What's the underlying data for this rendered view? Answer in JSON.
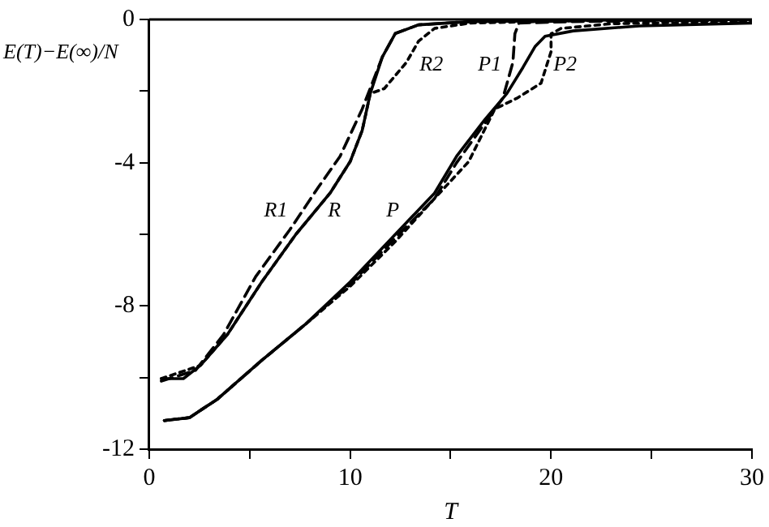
{
  "chart_data": {
    "type": "line",
    "xlabel": "T",
    "ylabel": "E(T)−E(∞)/N",
    "xlim": [
      0,
      30
    ],
    "ylim": [
      -12,
      0
    ],
    "xticks": [
      0,
      {
        "value": 5,
        "label": null
      },
      10,
      {
        "value": 15,
        "label": null
      },
      20,
      {
        "value": 25,
        "label": null
      },
      30
    ],
    "yticks": [
      -12,
      {
        "value": -10,
        "label": null
      },
      -8,
      {
        "value": -6,
        "label": null
      },
      -4,
      {
        "value": -2,
        "label": null
      },
      0
    ],
    "grid": false,
    "legend": false,
    "marker": "none",
    "series": [
      {
        "name": "R",
        "color": "#000000",
        "line_style": "solid",
        "x": [
          0.6,
          1.7,
          2.55,
          3.9,
          5.6,
          7.3,
          9.0,
          10.0,
          10.6,
          11.0,
          11.6,
          12.25,
          13.4,
          16,
          22,
          30
        ],
        "values": [
          -10.03,
          -10.03,
          -9.66,
          -8.79,
          -7.33,
          -6.0,
          -4.85,
          -3.97,
          -3.1,
          -2.07,
          -1.05,
          -0.39,
          -0.15,
          -0.06,
          -0.02,
          0
        ]
      },
      {
        "name": "R1",
        "color": "#000000",
        "line_style": "dashed",
        "x": [
          0.6,
          2.3,
          3.7,
          5.3,
          7.0,
          8.4,
          9.5,
          10.6,
          11.1,
          11.6,
          12.25,
          13.4,
          16,
          22,
          30
        ],
        "values": [
          -10.1,
          -9.8,
          -8.8,
          -7.18,
          -5.87,
          -4.7,
          -3.82,
          -2.5,
          -1.78,
          -1.05,
          -0.39,
          -0.15,
          -0.06,
          -0.02,
          0
        ]
      },
      {
        "name": "R2",
        "color": "#000000",
        "line_style": "dotted",
        "x": [
          0.6,
          2.55,
          3.9,
          5.6,
          7.3,
          9.0,
          10.0,
          10.6,
          11.0,
          11.7,
          12.8,
          13.4,
          14.2,
          16,
          22,
          30
        ],
        "values": [
          -10.03,
          -9.66,
          -8.79,
          -7.33,
          -6.0,
          -4.85,
          -3.97,
          -3.1,
          -2.07,
          -1.93,
          -1.2,
          -0.61,
          -0.25,
          -0.1,
          -0.03,
          0
        ]
      },
      {
        "name": "P",
        "color": "#000000",
        "line_style": "solid",
        "x": [
          0.75,
          2.0,
          3.4,
          5.6,
          7.8,
          10,
          12.25,
          14.2,
          15.3,
          16.7,
          17.8,
          18.6,
          19.2,
          19.7,
          21.1,
          24.4,
          30
        ],
        "values": [
          -11.2,
          -11.12,
          -10.6,
          -9.52,
          -8.5,
          -7.33,
          -6.0,
          -4.85,
          -3.82,
          -2.8,
          -2.07,
          -1.34,
          -0.76,
          -0.47,
          -0.32,
          -0.18,
          -0.1
        ]
      },
      {
        "name": "P1",
        "color": "#000000",
        "line_style": "dashed",
        "x": [
          0.75,
          2.0,
          3.4,
          5.6,
          7.8,
          10,
          12.25,
          14.2,
          15.3,
          16.7,
          17.6,
          18.1,
          18.2,
          18.4,
          21,
          25,
          30
        ],
        "values": [
          -11.2,
          -11.12,
          -10.6,
          -9.52,
          -8.5,
          -7.4,
          -6.1,
          -5.0,
          -4.0,
          -2.9,
          -2.2,
          -1.2,
          -0.4,
          -0.1,
          -0.06,
          -0.04,
          -0.02
        ]
      },
      {
        "name": "P2",
        "color": "#000000",
        "line_style": "dotted",
        "x": [
          0.75,
          2.0,
          3.4,
          5.6,
          7.8,
          10,
          12.25,
          14.2,
          15.9,
          17.2,
          18.3,
          19.5,
          20,
          20,
          20.5,
          23,
          30
        ],
        "values": [
          -11.2,
          -11.12,
          -10.6,
          -9.52,
          -8.5,
          -7.45,
          -6.2,
          -5.0,
          -3.97,
          -2.5,
          -2.2,
          -1.78,
          -0.9,
          -0.4,
          -0.25,
          -0.12,
          -0.05
        ]
      }
    ]
  }
}
